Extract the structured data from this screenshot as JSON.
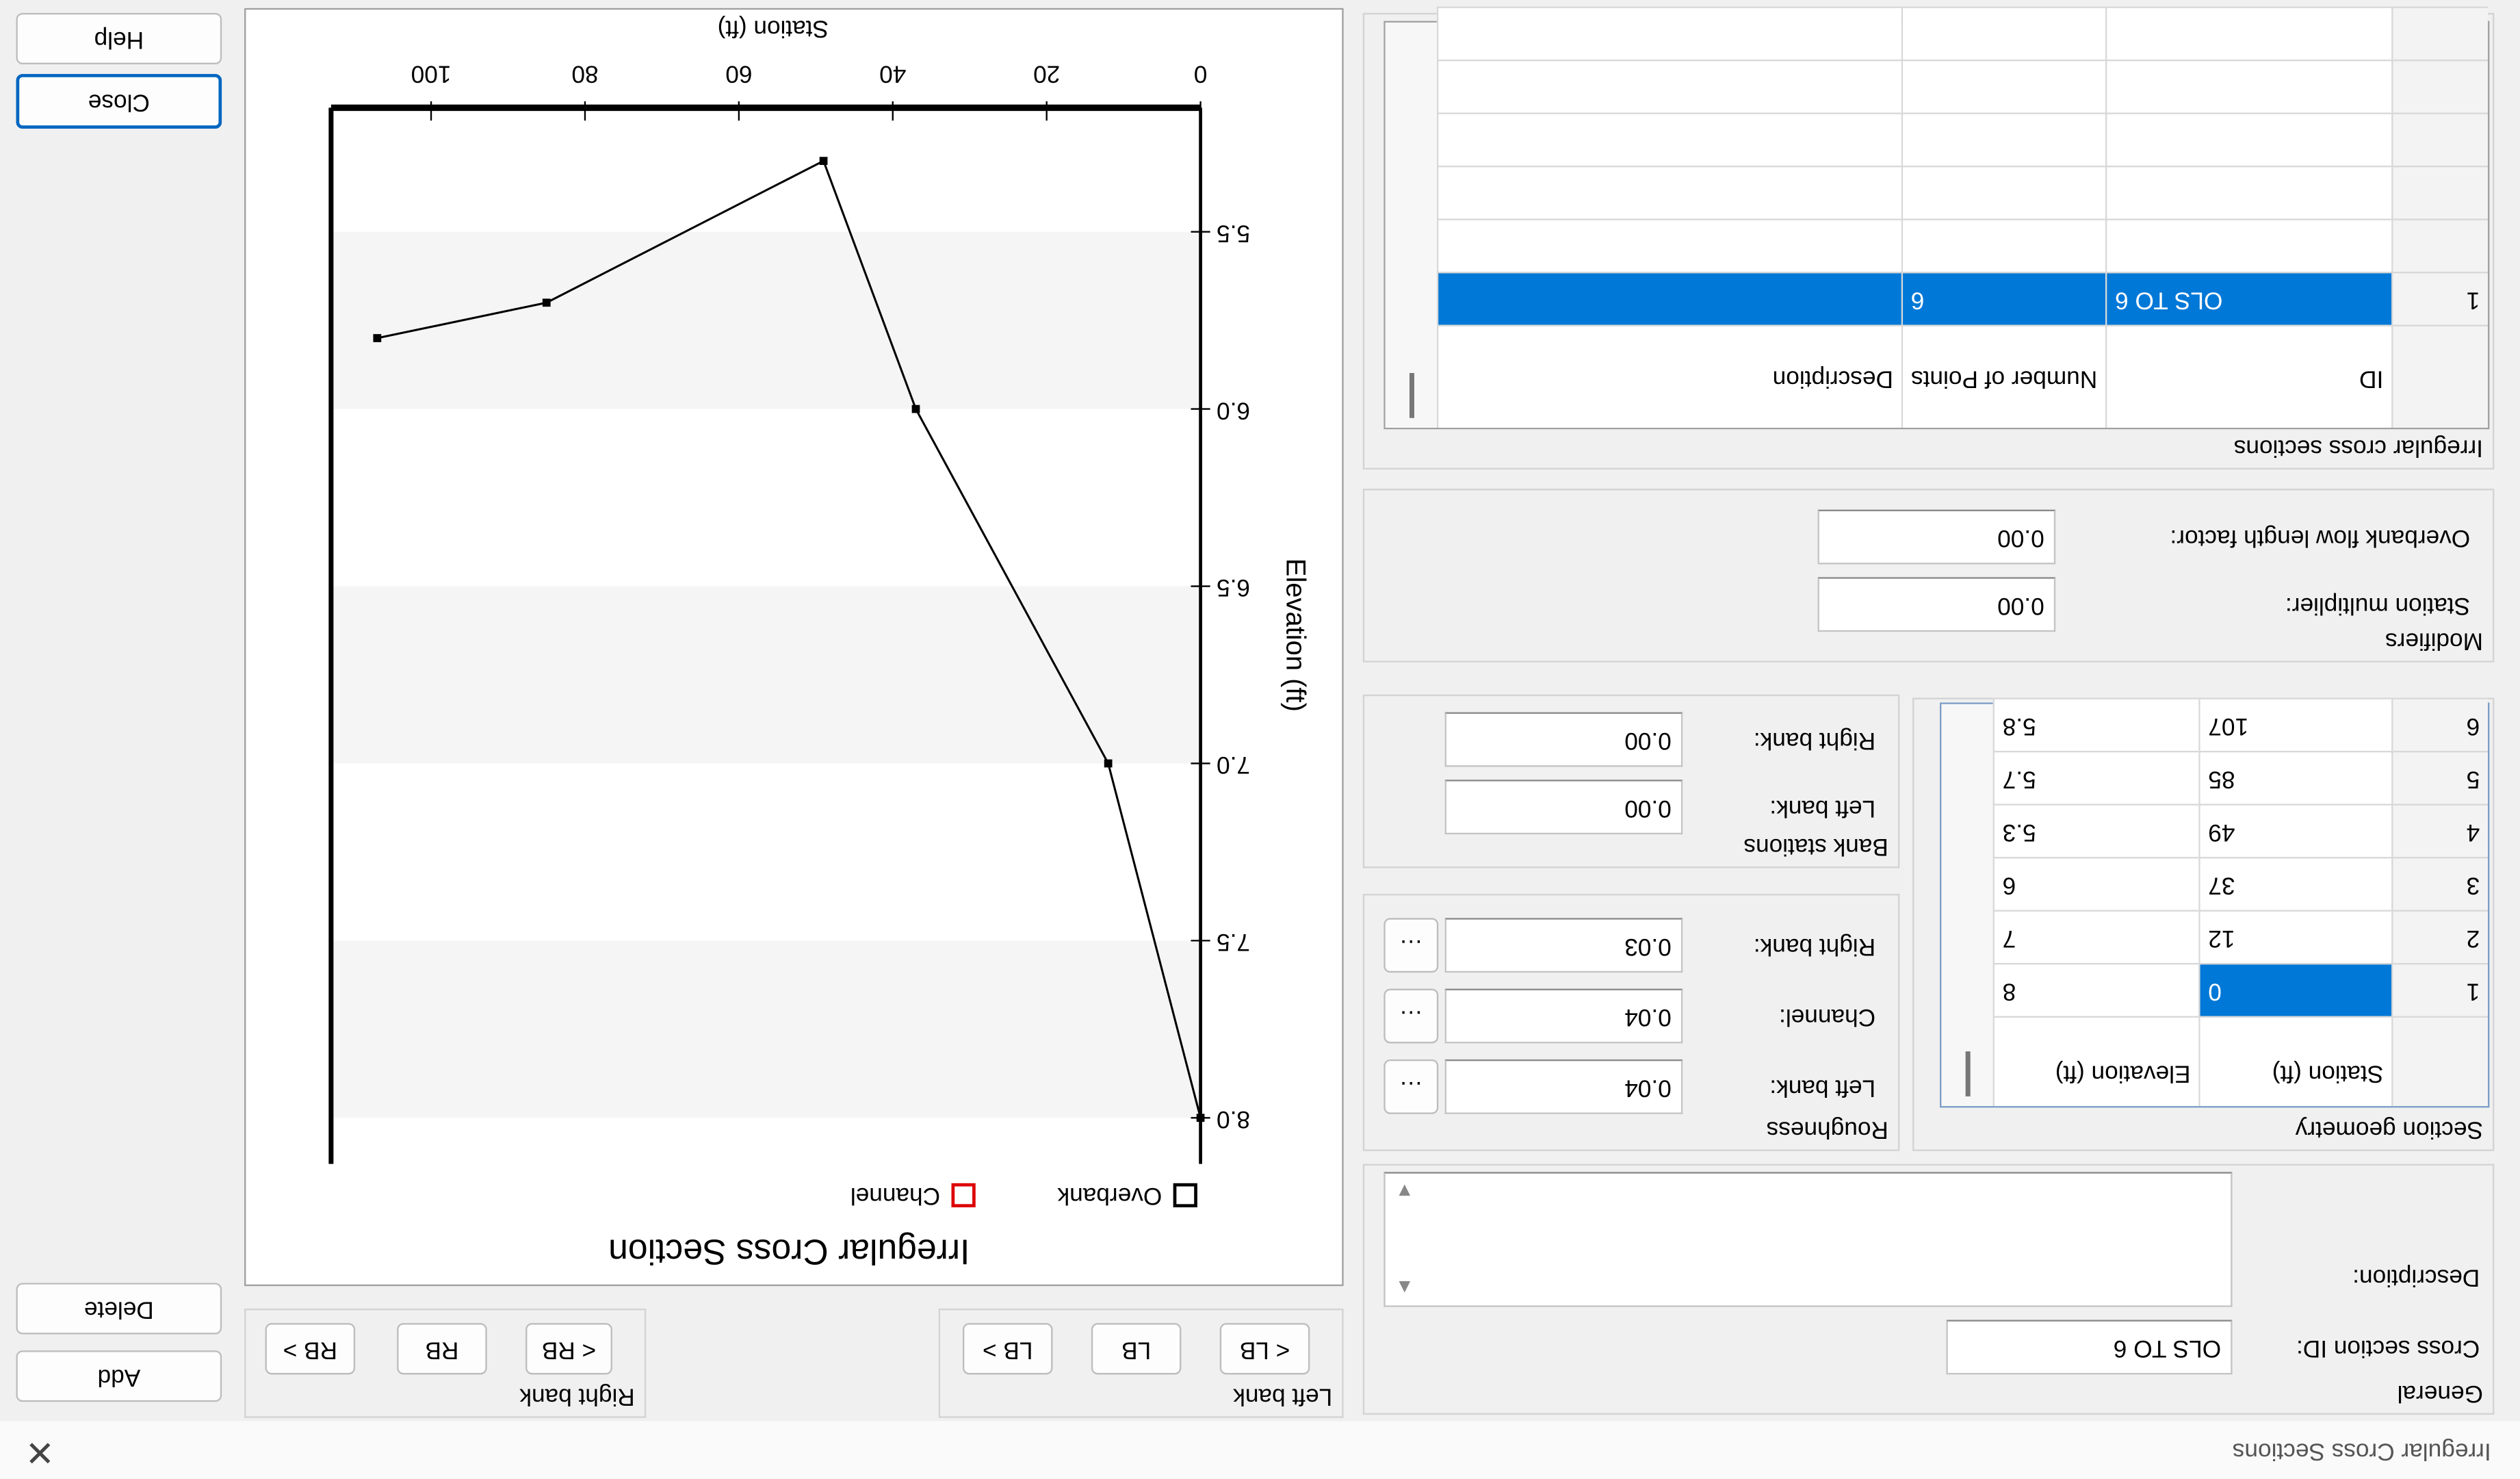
{
  "window": {
    "title": "Irregular Cross Sections"
  },
  "general": {
    "title": "General",
    "id_label": "Cross section ID:",
    "id_value": "OLS TO 6",
    "description_label": "Description:"
  },
  "section_geometry": {
    "title": "Section geometry",
    "columns": [
      "Station (ft)",
      "Elevation (ft)"
    ],
    "rows": [
      [
        1,
        0,
        8
      ],
      [
        2,
        12,
        7
      ],
      [
        3,
        37,
        6
      ],
      [
        4,
        49,
        5.3
      ],
      [
        5,
        85,
        5.7
      ],
      [
        6,
        107,
        5.8
      ]
    ]
  },
  "roughness": {
    "title": "Roughness",
    "left_label": "Left bank:",
    "left_value": "0.04",
    "channel_label": "Channel:",
    "channel_value": "0.04",
    "right_label": "Right bank:",
    "right_value": "0.03"
  },
  "bank_stations": {
    "title": "Bank stations",
    "left_label": "Left bank:",
    "left_value": "0.00",
    "right_label": "Right bank:",
    "right_value": "0.00"
  },
  "modifiers": {
    "title": "Modifiers",
    "station_label": "Station multiplier:",
    "station_value": "0.00",
    "overbank_label": "Overbank flow length factor:",
    "overbank_value": "0.00"
  },
  "cross_sections": {
    "title": "Irregular cross sections",
    "columns": [
      "ID",
      "Number of Points",
      "Description"
    ],
    "rows": [
      [
        1,
        "OLS TO 6",
        6
      ]
    ]
  },
  "left_bank": {
    "title": "Left bank",
    "buttons": [
      "< LB",
      "LB",
      "LB >"
    ]
  },
  "right_bank": {
    "title": "Right bank",
    "buttons": [
      "< RB",
      "RB",
      "RB >"
    ]
  },
  "buttons": [
    "Add",
    "Delete",
    "Close",
    "Help"
  ],
  "chart_data": {
    "type": "line",
    "title": "Irregular Cross Section",
    "x_label": "Station (ft)",
    "y_label": "Elevation (ft)",
    "legend": [
      {
        "name": "Overbank",
        "color": "#000000"
      },
      {
        "name": "Channel",
        "color": "#dd0000"
      }
    ],
    "x": [
      0,
      12,
      37,
      49,
      85,
      107
    ],
    "series": [
      {
        "color": "#000000",
        "values": [
          8,
          7,
          6,
          5.3,
          5.7,
          5.8
        ]
      }
    ],
    "xlim": [
      0,
      113
    ],
    "xticks": [
      0,
      20,
      40,
      60,
      80,
      100
    ],
    "ylim": [
      5.15,
      8.13
    ],
    "yticks": [
      5.5,
      {
        "value": 6,
        "label": "6.0"
      },
      6.5,
      {
        "value": 7,
        "label": "7.0"
      },
      7.5,
      {
        "value": 8,
        "label": "8.0"
      }
    ],
    "bands": true
  }
}
